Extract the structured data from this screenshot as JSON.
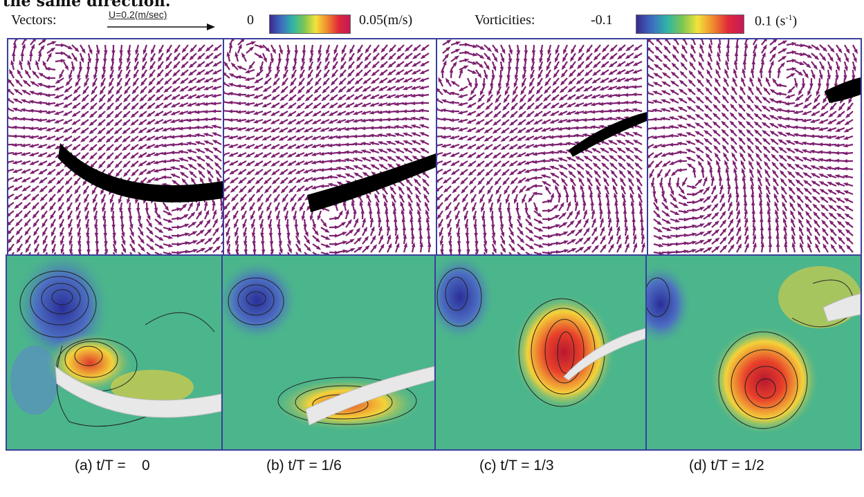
{
  "header_cut_text": "the same direction.",
  "legend": {
    "vectors_label": "Vectors:",
    "scale_label": "U=0.2(m/sec)",
    "vec_min": "0",
    "vec_max": "0.05(m/s)",
    "vort_label": "Vorticities:",
    "vort_min": "-0.1",
    "vort_max_num": "0.1 (s",
    "vort_max_exp": "-1",
    "vort_max_close": ")"
  },
  "colors": {
    "panel_border": "#3a3f9c",
    "background_green": "#4bb58c",
    "vector_purple": "#7d2070",
    "colormap": [
      "#3b2a8f",
      "#3d6cc0",
      "#2fb4a6",
      "#7cc653",
      "#f2e33a",
      "#f08a2e",
      "#e0283a",
      "#c21a5a"
    ]
  },
  "panels": [
    {
      "caption": "(a) t/T =    0"
    },
    {
      "caption": "(b) t/T = 1/6"
    },
    {
      "caption": "(c) t/T = 1/3"
    },
    {
      "caption": "(d) t/T = 1/2"
    }
  ]
}
